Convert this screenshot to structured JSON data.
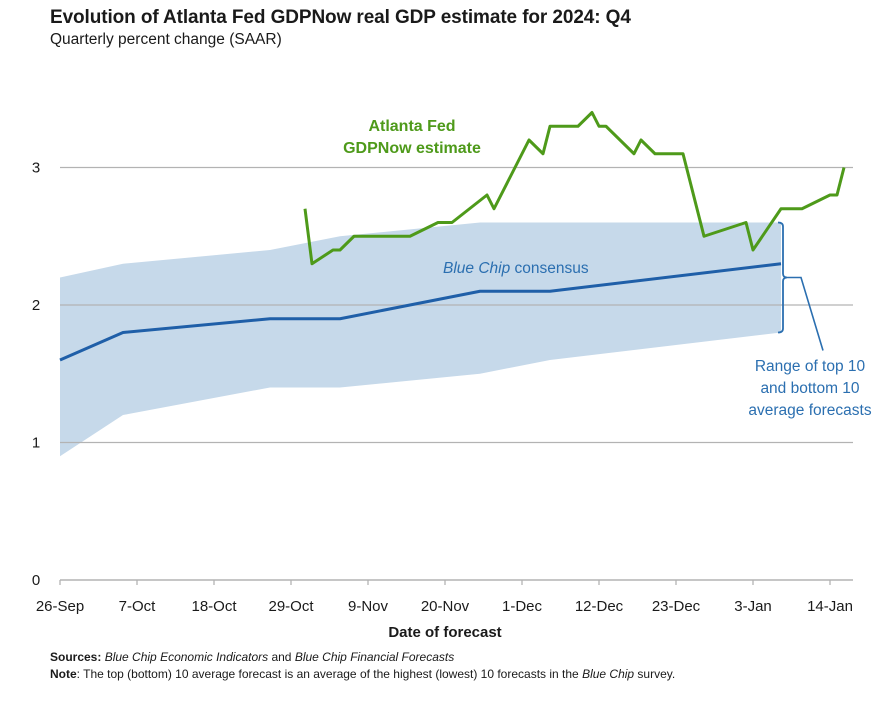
{
  "header": {
    "title": "Evolution of Atlanta Fed GDPNow real GDP estimate for 2024: Q4",
    "subtitle": "Quarterly percent change (SAAR)"
  },
  "footer": {
    "sources_label": "Sources:",
    "sources_italic_1": "Blue Chip Economic Indicators",
    "sources_and": " and ",
    "sources_italic_2": "Blue Chip Financial Forecasts",
    "note_label": "Note",
    "note_text_1": ": The top (bottom) 10 average forecast is an average of the highest (lowest) 10 forecasts in the ",
    "note_italic": "Blue Chip",
    "note_text_2": " survey."
  },
  "chart_data": {
    "type": "line",
    "title": "Evolution of Atlanta Fed GDPNow real GDP estimate for 2024: Q4",
    "subtitle": "Quarterly percent change (SAAR)",
    "xlabel": "Date of forecast",
    "ylabel": "",
    "x_start": "2024-09-26",
    "x_end": "2025-01-19",
    "ylim": [
      0,
      3.5
    ],
    "yticks": [
      0,
      1,
      2,
      3
    ],
    "ytick_labels": [
      "0",
      "1",
      "2",
      "3"
    ],
    "xtick_labels": [
      "26-Sep",
      "7-Oct",
      "18-Oct",
      "29-Oct",
      "9-Nov",
      "20-Nov",
      "1-Dec",
      "12-Dec",
      "23-Dec",
      "3-Jan",
      "14-Jan"
    ],
    "xtick_days": [
      0,
      11,
      22,
      33,
      44,
      55,
      66,
      77,
      88,
      99,
      110
    ],
    "grid": "horizontal",
    "colors": {
      "gdpnow": "#4e9a1a",
      "consensus": "#1f5fa8",
      "band": "#c6d9ea",
      "annotation_blue": "#2b6fb0",
      "grid": "#b3b3b3",
      "axis": "#b3b3b3"
    },
    "series": [
      {
        "name": "Atlanta Fed GDPNow estimate",
        "days": [
          35,
          36,
          39,
          40,
          42,
          50,
          54,
          56,
          61,
          62,
          67,
          69,
          70,
          74,
          76,
          77,
          78,
          82,
          83,
          85,
          89,
          92,
          98,
          99,
          103,
          106,
          110,
          111,
          112
        ],
        "values": [
          2.7,
          2.3,
          2.4,
          2.4,
          2.5,
          2.5,
          2.6,
          2.6,
          2.8,
          2.7,
          3.2,
          3.1,
          3.3,
          3.3,
          3.4,
          3.3,
          3.3,
          3.1,
          3.2,
          3.1,
          3.1,
          2.5,
          2.6,
          2.4,
          2.7,
          2.7,
          2.8,
          2.8,
          3.0
        ]
      },
      {
        "name": "Blue Chip consensus",
        "days": [
          0,
          9,
          30,
          40,
          60,
          70,
          103
        ],
        "values": [
          1.6,
          1.8,
          1.9,
          1.9,
          2.1,
          2.1,
          2.3
        ]
      }
    ],
    "band": {
      "name": "Range of top 10 and bottom 10 average forecasts",
      "days": [
        0,
        9,
        30,
        40,
        60,
        70,
        103
      ],
      "top10": [
        2.2,
        2.3,
        2.4,
        2.5,
        2.6,
        2.6,
        2.6
      ],
      "bottom10": [
        0.9,
        1.2,
        1.4,
        1.4,
        1.5,
        1.6,
        1.8
      ]
    },
    "annotations": {
      "gdpnow_line1": "Atlanta Fed",
      "gdpnow_line2": "GDPNow estimate",
      "consensus_italic": "Blue Chip",
      "consensus_rest": " consensus",
      "range_line1": "Range of top 10",
      "range_line2": "and bottom 10",
      "range_line3": "average forecasts"
    }
  }
}
